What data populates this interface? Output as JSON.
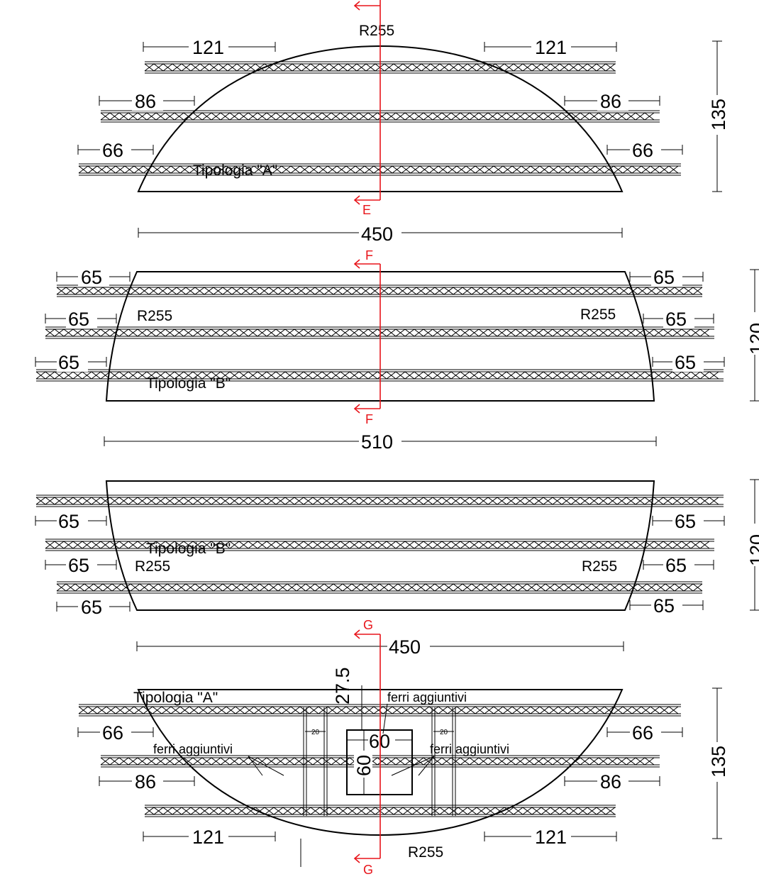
{
  "panels": [
    {
      "id": "a-top",
      "type_label": "Tipologia \"A\"",
      "radius_labels": [
        "R255"
      ],
      "rebar_lengths": [
        "121",
        "121",
        "86",
        "86",
        "66",
        "66"
      ],
      "width_dim": "450",
      "height_dim": "135"
    },
    {
      "id": "b-upper",
      "type_label": "Tipologia \"B\"",
      "radius_labels": [
        "R255",
        "R255"
      ],
      "rebar_lengths": [
        "65",
        "65",
        "65",
        "65",
        "65",
        "65"
      ],
      "width_dim": "510",
      "height_dim": "120"
    },
    {
      "id": "b-lower",
      "type_label": "Tipologia \"B\"",
      "radius_labels": [
        "R255",
        "R255"
      ],
      "rebar_lengths": [
        "65",
        "65",
        "65",
        "65",
        "65",
        "65"
      ],
      "width_dim": "450",
      "height_dim": "120"
    },
    {
      "id": "a-bottom",
      "type_label": "Tipologia \"A\"",
      "radius_labels": [
        "R255"
      ],
      "rebar_lengths": [
        "66",
        "66",
        "86",
        "86",
        "121",
        "121"
      ],
      "height_dim": "135",
      "opening": {
        "width": "60",
        "height": "60",
        "offset": "27.5",
        "side_gaps": [
          "20",
          "20"
        ]
      },
      "additional_bars_label": "ferri aggiuntivi",
      "additional_bars_labels": [
        "ferri aggiuntivi",
        "ferri aggiuntivi",
        "ferri aggiuntivi"
      ]
    }
  ],
  "section_marks": [
    "E",
    "E",
    "F",
    "F",
    "G",
    "G"
  ],
  "colors": {
    "lines": "#000000",
    "section_line": "#e8141a"
  }
}
